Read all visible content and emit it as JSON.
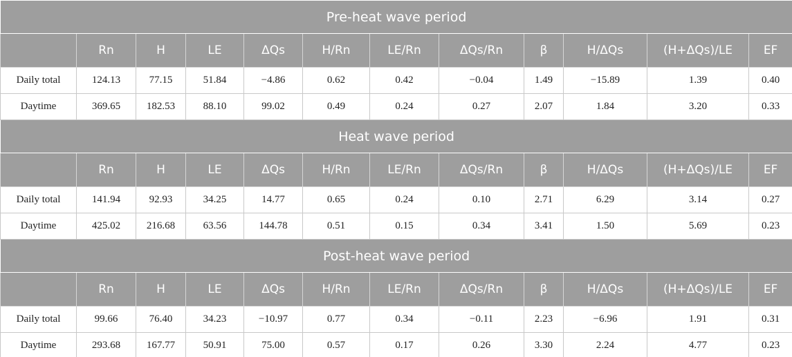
{
  "table": {
    "sections": [
      {
        "title": "Pre-heat wave period",
        "header": [
          "Rn",
          "H",
          "LE",
          "ΔQs",
          "H/Rn",
          "LE/Rn",
          "ΔQs/Rn",
          "β",
          "H/ΔQs",
          "(H+ΔQs)/LE",
          "EF"
        ],
        "rows": [
          {
            "label": "Daily total",
            "values": [
              "124.13",
              "77.15",
              "51.84",
              "−4.86",
              "0.62",
              "0.42",
              "−0.04",
              "1.49",
              "−15.89",
              "1.39",
              "0.40"
            ]
          },
          {
            "label": "Daytime",
            "values": [
              "369.65",
              "182.53",
              "88.10",
              "99.02",
              "0.49",
              "0.24",
              "0.27",
              "2.07",
              "1.84",
              "3.20",
              "0.33"
            ]
          }
        ]
      },
      {
        "title": "Heat wave period",
        "header": [
          "Rn",
          "H",
          "LE",
          "ΔQs",
          "H/Rn",
          "LE/Rn",
          "ΔQs/Rn",
          "β",
          "H/ΔQs",
          "(H+ΔQs)/LE",
          "EF"
        ],
        "rows": [
          {
            "label": "Daily total",
            "values": [
              "141.94",
              "92.93",
              "34.25",
              "14.77",
              "0.65",
              "0.24",
              "0.10",
              "2.71",
              "6.29",
              "3.14",
              "0.27"
            ]
          },
          {
            "label": "Daytime",
            "values": [
              "425.02",
              "216.68",
              "63.56",
              "144.78",
              "0.51",
              "0.15",
              "0.34",
              "3.41",
              "1.50",
              "5.69",
              "0.23"
            ]
          }
        ]
      },
      {
        "title": "Post-heat wave period",
        "header": [
          "Rn",
          "H",
          "LE",
          "ΔQs",
          "H/Rn",
          "LE/Rn",
          "ΔQs/Rn",
          "β",
          "H/ΔQs",
          "(H+ΔQs)/LE",
          "EF"
        ],
        "rows": [
          {
            "label": "Daily total",
            "values": [
              "99.66",
              "76.40",
              "34.23",
              "−10.97",
              "0.77",
              "0.34",
              "−0.11",
              "2.23",
              "−6.96",
              "1.91",
              "0.31"
            ]
          },
          {
            "label": "Daytime",
            "values": [
              "293.68",
              "167.77",
              "50.91",
              "75.00",
              "0.57",
              "0.17",
              "0.26",
              "3.30",
              "2.24",
              "4.77",
              "0.23"
            ]
          }
        ]
      }
    ]
  }
}
